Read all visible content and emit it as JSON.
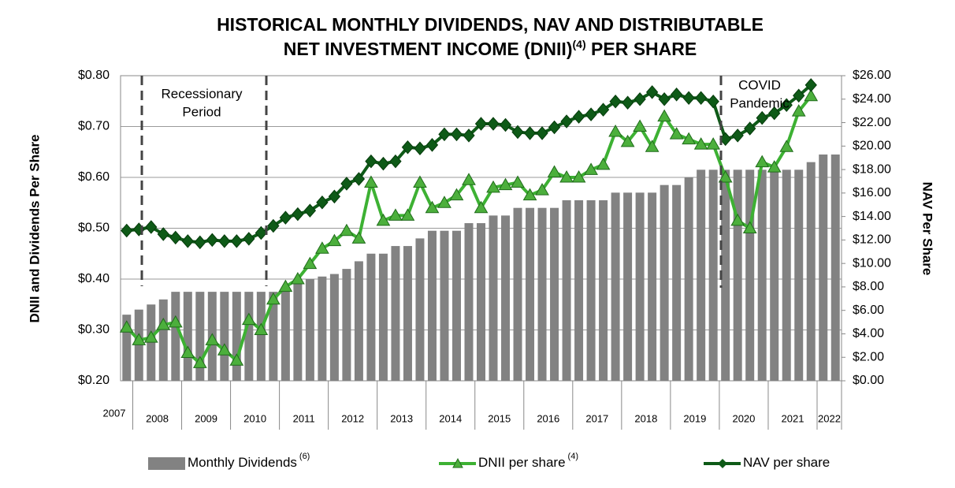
{
  "chart_data": {
    "type": "bar-line",
    "title": {
      "line1": "HISTORICAL MONTHLY DIVIDENDS, NAV AND DISTRIBUTABLE",
      "line2": "NET INVESTMENT INCOME (DNII)",
      "line2_note": "(4)",
      "line2_end": " PER SHARE"
    },
    "y_label": "DNII and Dividends Per Share",
    "y2_label": "NAV Per Share",
    "categories": [
      "2007",
      "2008",
      null,
      null,
      null,
      "2009",
      null,
      null,
      null,
      "2010",
      null,
      null,
      null,
      "2011",
      null,
      null,
      null,
      "2012",
      null,
      null,
      null,
      "2013",
      null,
      null,
      null,
      "2014",
      null,
      null,
      null,
      "2015",
      null,
      null,
      null,
      "2016",
      null,
      null,
      null,
      "2017",
      null,
      null,
      null,
      "2018",
      null,
      null,
      null,
      "2019",
      null,
      null,
      null,
      "2020",
      null,
      null,
      null,
      "2021",
      null,
      null,
      null,
      "2022",
      null
    ],
    "series": [
      {
        "name": "Monthly Dividends",
        "note": "(6)",
        "kind": "bar",
        "color": "#828282",
        "values": [
          0.33,
          0.34,
          0.35,
          0.36,
          0.375,
          0.375,
          0.375,
          0.375,
          0.375,
          0.375,
          0.375,
          0.375,
          0.375,
          0.38,
          0.39,
          0.4,
          0.405,
          0.41,
          0.42,
          0.435,
          0.45,
          0.45,
          0.465,
          0.465,
          0.48,
          0.495,
          0.495,
          0.495,
          0.51,
          0.51,
          0.525,
          0.525,
          0.54,
          0.54,
          0.54,
          0.54,
          0.555,
          0.555,
          0.555,
          0.555,
          0.57,
          0.57,
          0.57,
          0.57,
          0.585,
          0.585,
          0.6,
          0.615,
          0.615,
          0.615,
          0.615,
          0.615,
          0.615,
          0.615,
          0.615,
          0.615,
          0.63,
          0.645,
          0.645
        ]
      },
      {
        "name": "DNII per share",
        "note": "(4)",
        "kind": "line",
        "marker": "triangle",
        "color": "#3db133",
        "marker_color": "#4caf3c",
        "values": [
          0.305,
          0.28,
          0.285,
          0.31,
          0.315,
          0.255,
          0.235,
          0.28,
          0.26,
          0.24,
          0.32,
          0.3,
          0.36,
          0.385,
          0.4,
          0.43,
          0.46,
          0.475,
          0.495,
          0.48,
          0.59,
          0.515,
          0.525,
          0.525,
          0.59,
          0.54,
          0.55,
          0.565,
          0.595,
          0.54,
          0.58,
          0.585,
          0.59,
          0.565,
          0.575,
          0.61,
          0.6,
          0.6,
          0.615,
          0.625,
          0.69,
          0.67,
          0.7,
          0.66,
          0.72,
          0.685,
          0.675,
          0.665,
          0.665,
          0.6,
          0.515,
          0.5,
          0.63,
          0.62,
          0.66,
          0.73,
          0.76,
          null,
          null
        ]
      },
      {
        "name": "NAV per share",
        "kind": "line",
        "marker": "diamond",
        "axis": "y2",
        "color": "#0e5a17",
        "marker_color": "#0e5a17",
        "values": [
          12.8,
          12.9,
          13.1,
          12.5,
          12.2,
          11.9,
          11.8,
          12.0,
          11.9,
          11.9,
          12.1,
          12.6,
          13.2,
          13.9,
          14.2,
          14.5,
          15.2,
          15.7,
          16.8,
          17.2,
          18.7,
          18.5,
          18.7,
          19.9,
          19.8,
          20.1,
          21.0,
          21.0,
          20.9,
          21.9,
          21.9,
          21.8,
          21.2,
          21.1,
          21.1,
          21.6,
          22.1,
          22.5,
          22.7,
          23.1,
          23.8,
          23.7,
          24.0,
          24.6,
          24.0,
          24.4,
          24.1,
          24.1,
          23.8,
          20.6,
          20.9,
          21.5,
          22.4,
          22.8,
          23.5,
          24.3,
          25.2,
          null,
          null
        ]
      }
    ],
    "ylim": [
      0.2,
      0.8
    ],
    "yticks": [
      {
        "value": 0.2,
        "label": "$0.20"
      },
      {
        "value": 0.3,
        "label": "$0.30"
      },
      {
        "value": 0.4,
        "label": "$0.40"
      },
      {
        "value": 0.5,
        "label": "$0.50"
      },
      {
        "value": 0.6,
        "label": "$0.60"
      },
      {
        "value": 0.7,
        "label": "$0.70"
      },
      {
        "value": 0.8,
        "label": "$0.80"
      }
    ],
    "y2lim": [
      0,
      26
    ],
    "y2ticks": [
      {
        "value": 0,
        "label": "$0.00"
      },
      {
        "value": 2,
        "label": "$2.00"
      },
      {
        "value": 4,
        "label": "$4.00"
      },
      {
        "value": 6,
        "label": "$6.00"
      },
      {
        "value": 8,
        "label": "$8.00"
      },
      {
        "value": 10,
        "label": "$10.00"
      },
      {
        "value": 12,
        "label": "$12.00"
      },
      {
        "value": 14,
        "label": "$14.00"
      },
      {
        "value": 16,
        "label": "$16.00"
      },
      {
        "value": 18,
        "label": "$18.00"
      },
      {
        "value": 20,
        "label": "$20.00"
      },
      {
        "value": 22,
        "label": "$22.00"
      },
      {
        "value": 24,
        "label": "$24.00"
      },
      {
        "value": 26,
        "label": "$26.00"
      }
    ],
    "grid": true,
    "legend": "bottom",
    "annotations": [
      {
        "lines": [
          "Recessionary",
          "Period"
        ]
      },
      {
        "lines": [
          "COVID",
          "Pandemic"
        ]
      }
    ]
  }
}
